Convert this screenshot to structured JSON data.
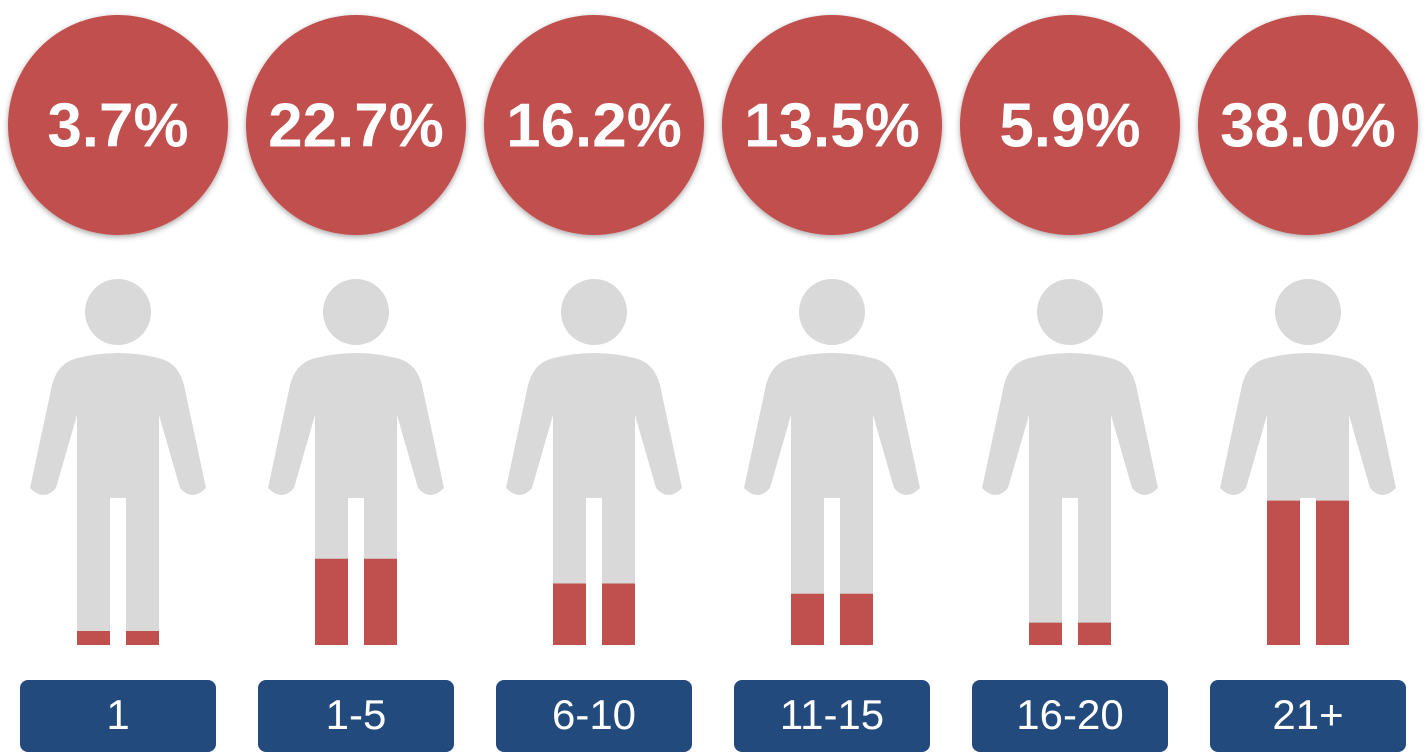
{
  "chart_data": {
    "type": "pictogram",
    "categories": [
      "1",
      "1-5",
      "6-10",
      "11-15",
      "16-20",
      "21+"
    ],
    "values": [
      3.7,
      22.7,
      16.2,
      13.5,
      5.9,
      38.0
    ],
    "value_labels": [
      "3.7%",
      "22.7%",
      "16.2%",
      "13.5%",
      "5.9%",
      "38.0%"
    ],
    "color": "#c0504d"
  }
}
